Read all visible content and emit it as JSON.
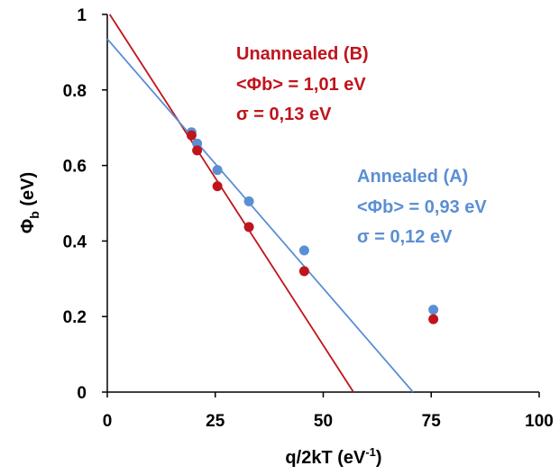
{
  "chart_data": {
    "type": "scatter",
    "xlabel": {
      "main": "q/2kT (eV",
      "sup": "-1",
      "end": ")"
    },
    "ylabel": {
      "main": "Φ",
      "sub": "b",
      "end": " (eV)"
    },
    "xlim": [
      0,
      100
    ],
    "ylim": [
      0,
      1
    ],
    "x_ticks": [
      "0",
      "25",
      "50",
      "75",
      "100"
    ],
    "y_ticks": [
      "0",
      "0.2",
      "0.4",
      "0.6",
      "0.8",
      "1"
    ],
    "grid": false,
    "series": [
      {
        "name": "Unannealed (B)",
        "color": "#c0141c",
        "points": [
          {
            "x": 19.5,
            "y": 0.68
          },
          {
            "x": 20.8,
            "y": 0.64
          },
          {
            "x": 25.5,
            "y": 0.545
          },
          {
            "x": 32.8,
            "y": 0.437
          },
          {
            "x": 45.6,
            "y": 0.32
          },
          {
            "x": 75.5,
            "y": 0.193
          }
        ],
        "fit": {
          "intercept": 1.01,
          "x_intercept": 57
        }
      },
      {
        "name": "Annealed (A)",
        "color": "#5b8fd4",
        "points": [
          {
            "x": 19.5,
            "y": 0.688
          },
          {
            "x": 20.8,
            "y": 0.658
          },
          {
            "x": 25.5,
            "y": 0.588
          },
          {
            "x": 32.8,
            "y": 0.505
          },
          {
            "x": 45.6,
            "y": 0.375
          },
          {
            "x": 75.5,
            "y": 0.218
          }
        ],
        "fit": {
          "intercept": 0.935,
          "x_intercept": 70.8
        }
      }
    ],
    "annotations": [
      {
        "series": 0,
        "lines": [
          "Unannealed (B)",
          "<Φb> = 1,01 eV",
          "σ = 0,13 eV"
        ]
      },
      {
        "series": 1,
        "lines": [
          "Annealed (A)",
          "<Φb> = 0,93 eV",
          "σ = 0,12 eV"
        ]
      }
    ]
  }
}
